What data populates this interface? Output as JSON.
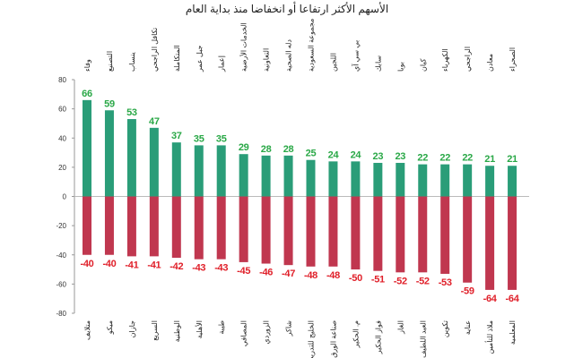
{
  "chart_data": {
    "type": "bar",
    "title": "الأسهم الأكثر ارتفاعا أو انخفاضا منذ بداية العام",
    "ylim": [
      -80,
      80
    ],
    "yticks": [
      80,
      60,
      40,
      20,
      0,
      -20,
      -40,
      -60,
      -80
    ],
    "grid": false,
    "series": [
      {
        "name": "gainers",
        "color": "#2a9d78",
        "label_color": "#2aa847",
        "categories": [
          "وفاء",
          "التصنيع",
          "ينساب",
          "تكافل الراجحي",
          "المتكاملة",
          "جبل عمر",
          "إعمار",
          "الخدمات الأرضية",
          "التعاونية",
          "دله الصحية",
          "مجموعة السعودية",
          "اللجين",
          "بي سي آي",
          "سابك",
          "بوبا",
          "كيان",
          "الكهرباء",
          "الراجحي",
          "معادن",
          "الصحراء"
        ],
        "values": [
          66,
          59,
          53,
          47,
          37,
          35,
          35,
          29,
          28,
          28,
          25,
          24,
          24,
          23,
          23,
          22,
          22,
          22,
          21,
          21
        ]
      },
      {
        "name": "losers",
        "color": "#c0374f",
        "label_color": "#e0202a",
        "categories": [
          "متلايف",
          "ميكو",
          "جازان",
          "السريع",
          "الوطنية",
          "الأهلية",
          "طيبة",
          "المصافي",
          "الزوردي",
          "شاكر",
          "الخليج للتدريب",
          "صناعة الورق",
          "م. الحكير",
          "فواز الحكير",
          "الغاز",
          "العبد اللطيف",
          "تكوين",
          "عناية",
          "ملاذ للتأمين",
          "المعلمية"
        ],
        "values": [
          -40,
          -40,
          -41,
          -41,
          -42,
          -43,
          -43,
          -45,
          -46,
          -47,
          -48,
          -48,
          -50,
          -51,
          -52,
          -52,
          -53,
          -59,
          -64,
          -64
        ]
      }
    ]
  }
}
